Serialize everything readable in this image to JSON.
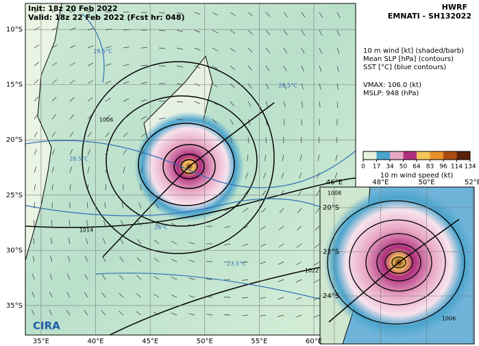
{
  "header": {
    "init": "Init: 18z 20 Feb 2022",
    "valid": "Valid: 18z 22 Feb 2022 (Fcst hr: 048)",
    "model": "HWRF",
    "storm": "EMNATI - SH132022"
  },
  "legend": {
    "lines": [
      "10 m wind [kt] (shaded/barb)",
      "Mean SLP [hPa] (contours)",
      "SST [°C] (blue contours)"
    ],
    "vmax": "VMAX: 106.0 (kt)",
    "mslp": "MSLP:  948 (hPa)"
  },
  "colorbar": {
    "ticks": [
      0,
      17,
      34,
      50,
      64,
      83,
      96,
      114,
      134
    ],
    "colors": [
      "#e6f2dc",
      "#4aa3cc",
      "#e8a7c4",
      "#b0307f",
      "#f5c55a",
      "#e8902c",
      "#a94d12",
      "#5a2208"
    ],
    "label": "10 m wind speed (kt)"
  },
  "main_map": {
    "lonlim": [
      33.56,
      63.83
    ],
    "latlim": [
      -7.64,
      -37.67
    ],
    "lat_ticks": [
      {
        "value": -10,
        "label": "10°S"
      },
      {
        "value": -15,
        "label": "15°S"
      },
      {
        "value": -20,
        "label": "20°S"
      },
      {
        "value": -25,
        "label": "25°S"
      },
      {
        "value": -30,
        "label": "30°S"
      },
      {
        "value": -35,
        "label": "35°S"
      }
    ],
    "lon_ticks": [
      {
        "value": 35,
        "label": "35°E"
      },
      {
        "value": 40,
        "label": "40°E"
      },
      {
        "value": 45,
        "label": "45°E"
      },
      {
        "value": 50,
        "label": "50°E"
      },
      {
        "value": 55,
        "label": "55°E"
      },
      {
        "value": 60,
        "label": "60°E"
      }
    ],
    "contour_labels": [
      "1006",
      "1014",
      "1022"
    ],
    "sst_labels": [
      "28.5°C",
      "28.5°C",
      "28.5°C",
      "26°C",
      "23.5°C"
    ]
  },
  "inset": {
    "lonlim": [
      45.38,
      52.06
    ],
    "latlim": [
      -19.07,
      -26.17
    ],
    "lat_ticks": [
      {
        "value": -20,
        "label": "20°S"
      },
      {
        "value": -22,
        "label": "22°S"
      },
      {
        "value": -24,
        "label": "24°S"
      }
    ],
    "lon_ticks": [
      {
        "value": 46,
        "label": "46°E"
      },
      {
        "value": 48,
        "label": "48°E"
      },
      {
        "value": 50,
        "label": "50°E"
      },
      {
        "value": 52,
        "label": "52°E"
      }
    ],
    "contour_labels": [
      "1008",
      "1006"
    ]
  },
  "logo": "CIRA"
}
